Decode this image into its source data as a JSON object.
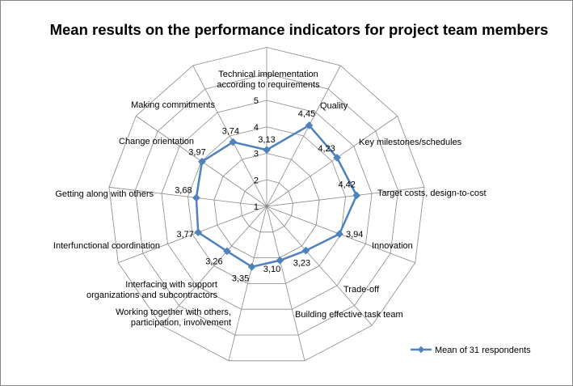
{
  "chart_data": {
    "type": "radar",
    "title": "Mean results on the performance indicators for project team members",
    "categories": [
      "Technical implementation according to requirements",
      "Quality",
      "Key milestones/schedules",
      "Target costs, design-to-cost",
      "Innovation",
      "Trade-off",
      "Building effective task team",
      "Working together with others, participation, involvement",
      "Interfacing with support organizations and subcontractors",
      "Interfunctional coordination",
      "Getting along with others",
      "Change orientation",
      "Making commitments"
    ],
    "series": [
      {
        "name": "Mean of 31 respondents",
        "color": "#4F81BD",
        "values": [
          3.13,
          4.45,
          4.23,
          4.42,
          3.94,
          3.23,
          3.1,
          3.35,
          3.26,
          3.77,
          3.68,
          3.97,
          3.74
        ],
        "value_labels": [
          "3,13",
          "4,45",
          "4,23",
          "4,42",
          "3,94",
          "3,23",
          "3,10",
          "3,35",
          "3,26",
          "3,77",
          "3,68",
          "3,97",
          "3,74"
        ]
      }
    ],
    "rmin": 1,
    "rmax": 5,
    "ticks": [
      1,
      2,
      3,
      4,
      5
    ],
    "grid": true,
    "legend_position": "bottom-right"
  }
}
